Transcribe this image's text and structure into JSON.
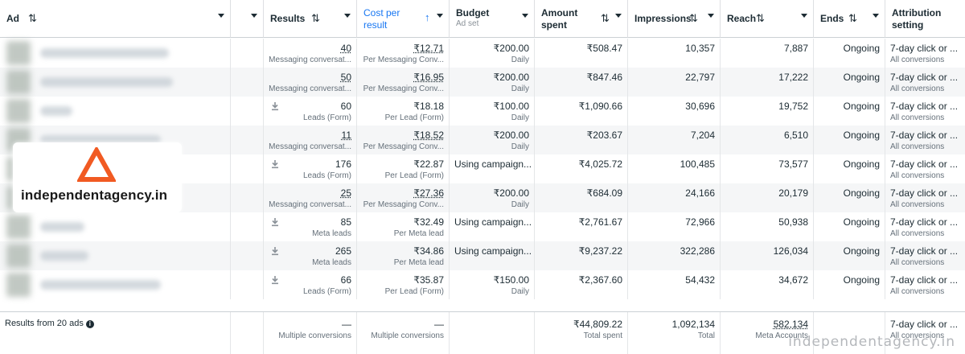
{
  "colors": {
    "accent": "#1877f2",
    "logo_orange": "#f15a22"
  },
  "columns": [
    {
      "key": "ad",
      "title": "Ad",
      "sort": "⇅",
      "subtitle": ""
    },
    {
      "key": "blank",
      "title": "",
      "sort": "",
      "subtitle": ""
    },
    {
      "key": "results",
      "title": "Results",
      "sort": "⇅",
      "subtitle": ""
    },
    {
      "key": "cpr",
      "title": "Cost per result",
      "sort": "↑",
      "subtitle": ""
    },
    {
      "key": "budget",
      "title": "Budget",
      "sort": "",
      "subtitle": "Ad set"
    },
    {
      "key": "spent",
      "title": "Amount spent",
      "sort": "⇅",
      "subtitle": ""
    },
    {
      "key": "impr",
      "title": "Impressions",
      "sort": "⇅",
      "subtitle": ""
    },
    {
      "key": "reach",
      "title": "Reach",
      "sort": "⇅",
      "subtitle": ""
    },
    {
      "key": "ends",
      "title": "Ends",
      "sort": "⇅",
      "subtitle": ""
    },
    {
      "key": "attr",
      "title": "Attribution setting",
      "sort": "",
      "subtitle": ""
    }
  ],
  "rows": [
    {
      "download": false,
      "results": "40",
      "results_sub": "Messaging conversat...",
      "cpr": "₹12.71",
      "cpr_sub": "Per Messaging Conv...",
      "budget": "₹200.00",
      "budget_sub": "Daily",
      "spent": "₹508.47",
      "impr": "10,357",
      "reach": "7,887",
      "ends": "Ongoing",
      "attr": "7-day click or ...",
      "attr_sub": "All conversions"
    },
    {
      "download": false,
      "results": "50",
      "results_sub": "Messaging conversat...",
      "cpr": "₹16.95",
      "cpr_sub": "Per Messaging Conv...",
      "budget": "₹200.00",
      "budget_sub": "Daily",
      "spent": "₹847.46",
      "impr": "22,797",
      "reach": "17,222",
      "ends": "Ongoing",
      "attr": "7-day click or ...",
      "attr_sub": "All conversions"
    },
    {
      "download": true,
      "results": "60",
      "results_sub": "Leads (Form)",
      "cpr": "₹18.18",
      "cpr_sub": "Per Lead (Form)",
      "budget": "₹100.00",
      "budget_sub": "Daily",
      "spent": "₹1,090.66",
      "impr": "30,696",
      "reach": "19,752",
      "ends": "Ongoing",
      "attr": "7-day click or ...",
      "attr_sub": "All conversions"
    },
    {
      "download": false,
      "results": "11",
      "results_sub": "Messaging conversat...",
      "cpr": "₹18.52",
      "cpr_sub": "Per Messaging Conv...",
      "budget": "₹200.00",
      "budget_sub": "Daily",
      "spent": "₹203.67",
      "impr": "7,204",
      "reach": "6,510",
      "ends": "Ongoing",
      "attr": "7-day click or ...",
      "attr_sub": "All conversions"
    },
    {
      "download": true,
      "results": "176",
      "results_sub": "Leads (Form)",
      "cpr": "₹22.87",
      "cpr_sub": "Per Lead (Form)",
      "budget": "Using campaign...",
      "budget_sub": "",
      "spent": "₹4,025.72",
      "impr": "100,485",
      "reach": "73,577",
      "ends": "Ongoing",
      "attr": "7-day click or ...",
      "attr_sub": "All conversions"
    },
    {
      "download": false,
      "results": "25",
      "results_sub": "Messaging conversat...",
      "cpr": "₹27.36",
      "cpr_sub": "Per Messaging Conv...",
      "budget": "₹200.00",
      "budget_sub": "Daily",
      "spent": "₹684.09",
      "impr": "24,166",
      "reach": "20,179",
      "ends": "Ongoing",
      "attr": "7-day click or ...",
      "attr_sub": "All conversions"
    },
    {
      "download": true,
      "results": "85",
      "results_sub": "Meta leads",
      "cpr": "₹32.49",
      "cpr_sub": "Per Meta lead",
      "budget": "Using campaign...",
      "budget_sub": "",
      "spent": "₹2,761.67",
      "impr": "72,966",
      "reach": "50,938",
      "ends": "Ongoing",
      "attr": "7-day click or ...",
      "attr_sub": "All conversions"
    },
    {
      "download": true,
      "results": "265",
      "results_sub": "Meta leads",
      "cpr": "₹34.86",
      "cpr_sub": "Per Meta lead",
      "budget": "Using campaign...",
      "budget_sub": "",
      "spent": "₹9,237.22",
      "impr": "322,286",
      "reach": "126,034",
      "ends": "Ongoing",
      "attr": "7-day click or ...",
      "attr_sub": "All conversions"
    },
    {
      "download": true,
      "results": "66",
      "results_sub": "Leads (Form)",
      "cpr": "₹35.87",
      "cpr_sub": "Per Lead (Form)",
      "budget": "₹150.00",
      "budget_sub": "Daily",
      "spent": "₹2,367.60",
      "impr": "54,432",
      "reach": "34,672",
      "ends": "Ongoing",
      "attr": "7-day click or ...",
      "attr_sub": "All conversions"
    }
  ],
  "footer": {
    "label": "Results from 20 ads",
    "results": "—",
    "results_sub": "Multiple conversions",
    "cpr": "—",
    "cpr_sub": "Multiple conversions",
    "spent": "₹44,809.22",
    "spent_sub": "Total spent",
    "impr": "1,092,134",
    "impr_sub": "Total",
    "reach": "582,134",
    "reach_sub": "Meta Accounts",
    "attr": "7-day click or ...",
    "attr_sub": "All conversions"
  },
  "logo": {
    "text": "independentagency.in"
  },
  "watermark": "independentagency.in"
}
